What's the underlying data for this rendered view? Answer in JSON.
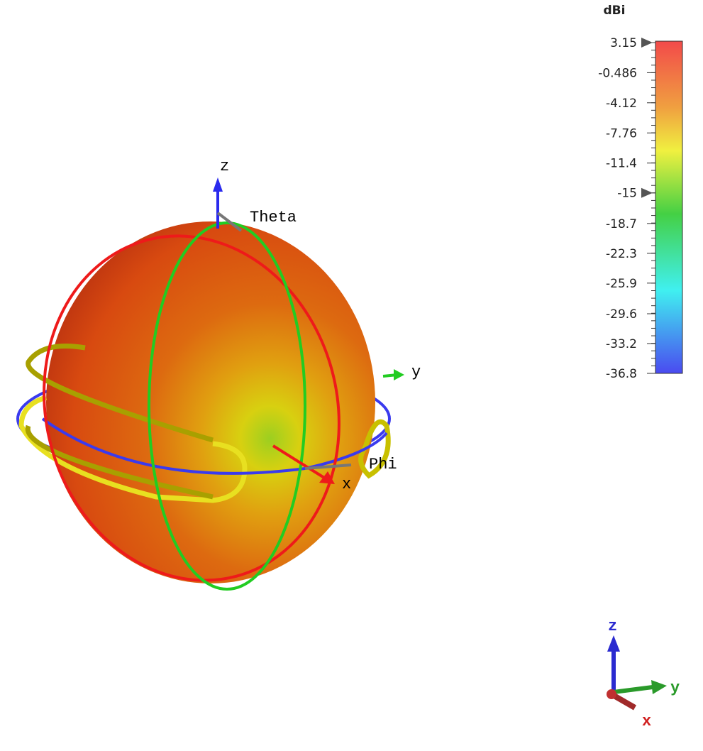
{
  "colorbar": {
    "title": "dBi",
    "ticks": [
      3.15,
      -0.486,
      -4.12,
      -7.76,
      -11.4,
      -15,
      -18.7,
      -22.3,
      -25.9,
      -29.6,
      -33.2,
      -36.8
    ]
  },
  "scene_axes": {
    "z": "z",
    "theta": "Theta",
    "y": "y",
    "phi": "Phi",
    "x": "x"
  },
  "triad": {
    "z": "z",
    "y": "y",
    "x": "x"
  }
}
